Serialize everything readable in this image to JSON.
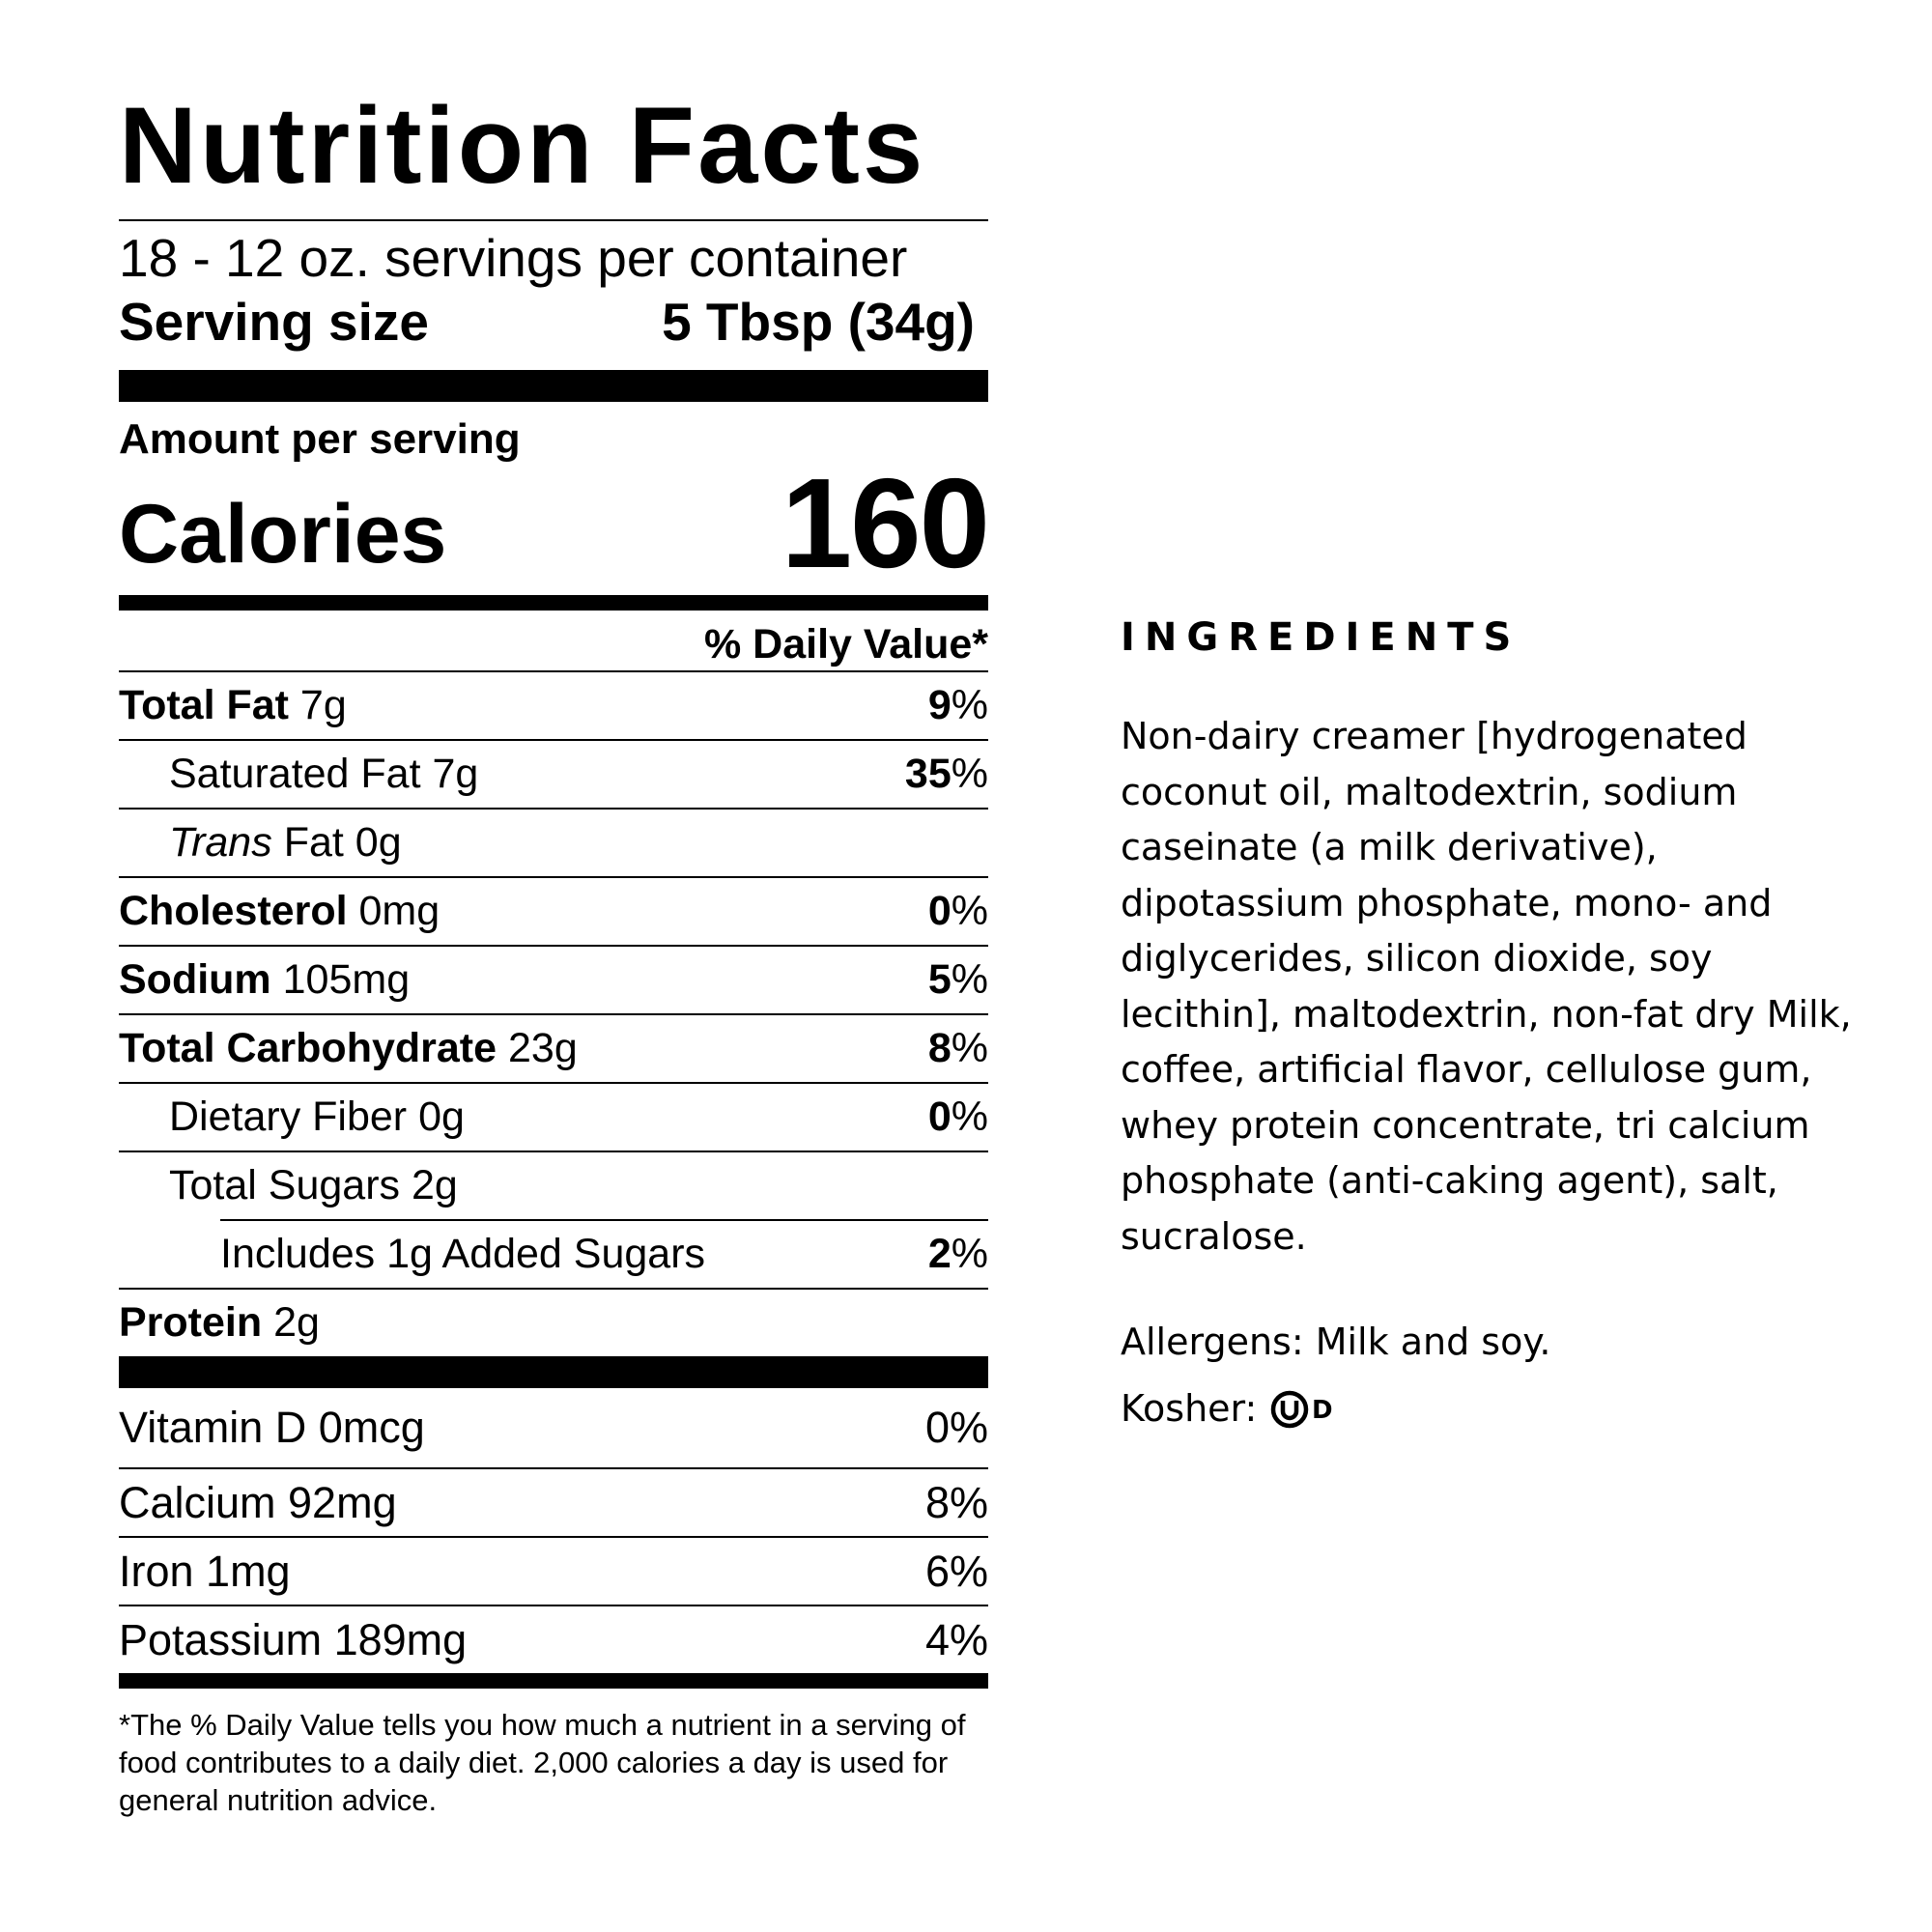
{
  "label": {
    "title": "Nutrition Facts",
    "servings": "18 - 12 oz. servings per container",
    "serving_size_label": "Serving size",
    "serving_size_value": "5 Tbsp (34g)",
    "amount_per_serving": "Amount per serving",
    "calories_label": "Calories",
    "calories_value": "160",
    "daily_value_header": "% Daily Value*",
    "nutrients": [
      {
        "name": "Total Fat",
        "amount": "7g",
        "dv": "9"
      },
      {
        "name": "Saturated Fat",
        "amount": "7g",
        "dv": "35"
      },
      {
        "name_italic": "Trans",
        "name": "Fat",
        "amount": "0g"
      },
      {
        "name": "Cholesterol",
        "amount": "0mg",
        "dv": "0"
      },
      {
        "name": "Sodium",
        "amount": "105mg",
        "dv": "5"
      },
      {
        "name": "Total Carbohydrate",
        "amount": "23g",
        "dv": "8"
      },
      {
        "name": "Dietary Fiber",
        "amount": "0g",
        "dv": "0"
      },
      {
        "name": "Total Sugars",
        "amount": "2g"
      },
      {
        "name": "Includes 1g Added Sugars",
        "dv": "2"
      },
      {
        "name": "Protein",
        "amount": "2g"
      }
    ],
    "percent_sign": "%",
    "vitamins": [
      {
        "name": "Vitamin D 0mcg",
        "dv": "0%"
      },
      {
        "name": "Calcium 92mg",
        "dv": "8%"
      },
      {
        "name": "Iron 1mg",
        "dv": "6%"
      },
      {
        "name": "Potassium 189mg",
        "dv": "4%"
      }
    ],
    "footnote": "*The % Daily Value tells you how much a nutrient in a serving of food contributes to a daily diet. 2,000 calories a day is used for general nutrition advice."
  },
  "ingredients": {
    "title": "INGREDIENTS",
    "text": "Non-dairy creamer [hydrogenated coconut oil, maltodextrin, sodium caseinate (a milk derivative), dipotassium phosphate, mono- and diglycerides, silicon dioxide, soy lecithin], maltodextrin, non-fat dry Milk, coffee, artificial flavor, cellulose gum, whey protein concentrate, tri calcium phosphate (anti-caking agent), salt, sucralose.",
    "allergens": "Allergens: Milk and soy.",
    "kosher_label": "Kosher:",
    "kosher_symbol": "OU-D kosher symbol"
  }
}
